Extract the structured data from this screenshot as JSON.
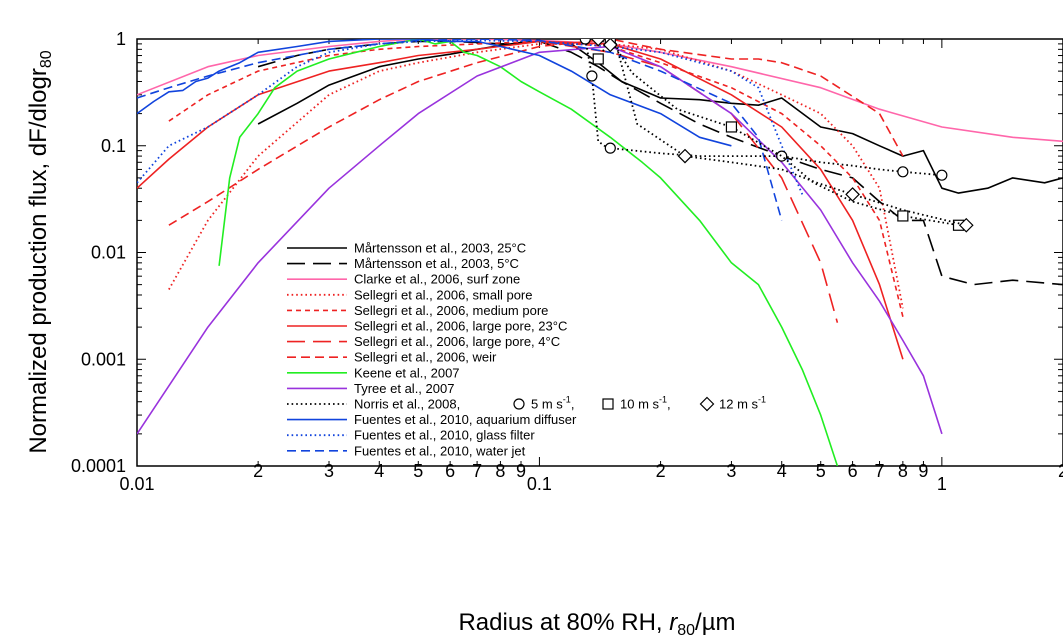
{
  "chart_data": {
    "type": "line",
    "xlabel_text": "Radius at 80% RH, ",
    "xlabel_var": "r",
    "xlabel_var_sub": "80",
    "xlabel_unit": "/µm",
    "ylabel_text": "Normalized production flux, dF/dlogr",
    "ylabel_sub": "80",
    "x_scale": "log",
    "y_scale": "log",
    "xlim": [
      0.01,
      2
    ],
    "ylim": [
      0.0001,
      1
    ],
    "x_major_ticks": [
      {
        "value": 0.01,
        "label": "0.01"
      },
      {
        "value": 0.1,
        "label": "0.1"
      },
      {
        "value": 1,
        "label": "1"
      }
    ],
    "x_minor_ticks": [
      {
        "value": 0.02,
        "label": "2"
      },
      {
        "value": 0.03,
        "label": "3"
      },
      {
        "value": 0.04,
        "label": "4"
      },
      {
        "value": 0.05,
        "label": "5"
      },
      {
        "value": 0.06,
        "label": "6"
      },
      {
        "value": 0.07,
        "label": "7"
      },
      {
        "value": 0.08,
        "label": "8"
      },
      {
        "value": 0.09,
        "label": "9"
      },
      {
        "value": 0.2,
        "label": "2"
      },
      {
        "value": 0.3,
        "label": "3"
      },
      {
        "value": 0.4,
        "label": "4"
      },
      {
        "value": 0.5,
        "label": "5"
      },
      {
        "value": 0.6,
        "label": "6"
      },
      {
        "value": 0.7,
        "label": "7"
      },
      {
        "value": 0.8,
        "label": "8"
      },
      {
        "value": 0.9,
        "label": "9"
      },
      {
        "value": 2,
        "label": "2"
      }
    ],
    "y_major_ticks": [
      {
        "value": 1,
        "label": "1"
      },
      {
        "value": 0.1,
        "label": "0.1"
      },
      {
        "value": 0.01,
        "label": "0.01"
      },
      {
        "value": 0.001,
        "label": "0.001"
      },
      {
        "value": 0.0001,
        "label": "0.0001"
      }
    ],
    "grid": false,
    "legend_position": "bottom-left inside",
    "norris_marker_legend": {
      "prefix": "Norris et al., 2008,",
      "items": [
        {
          "marker": "circle",
          "text": "5 m s",
          "sup": "-1",
          "after": ","
        },
        {
          "marker": "square",
          "text": "10 m s",
          "sup": "-1",
          "after": ","
        },
        {
          "marker": "diamond",
          "text": "12 m s",
          "sup": "-1",
          "after": ""
        }
      ]
    },
    "series": [
      {
        "name": "Mårtensson et al., 2003, 25°C",
        "color": "#000000",
        "dash": "solid",
        "x": [
          0.02,
          0.025,
          0.03,
          0.04,
          0.05,
          0.06,
          0.07,
          0.08,
          0.09,
          0.1,
          0.11,
          0.12,
          0.14,
          0.16,
          0.2,
          0.25,
          0.3,
          0.35,
          0.4,
          0.5,
          0.6,
          0.7,
          0.8,
          0.9,
          1.0,
          1.1,
          1.3,
          1.5,
          1.8,
          2.0
        ],
        "y": [
          0.16,
          0.25,
          0.37,
          0.55,
          0.65,
          0.72,
          0.8,
          0.87,
          0.93,
          0.95,
          0.95,
          0.9,
          0.6,
          0.4,
          0.28,
          0.27,
          0.25,
          0.24,
          0.28,
          0.15,
          0.13,
          0.1,
          0.08,
          0.09,
          0.04,
          0.036,
          0.04,
          0.05,
          0.045,
          0.05
        ]
      },
      {
        "name": "Mårtensson et al., 2003, 5°C",
        "color": "#000000",
        "dash": "longdash",
        "x": [
          0.02,
          0.025,
          0.03,
          0.04,
          0.05,
          0.06,
          0.07,
          0.08,
          0.09,
          0.1,
          0.12,
          0.14,
          0.16,
          0.2,
          0.25,
          0.3,
          0.4,
          0.5,
          0.6,
          0.7,
          0.8,
          0.9,
          1.0,
          1.2,
          1.5,
          2.0
        ],
        "y": [
          0.55,
          0.7,
          0.8,
          0.9,
          0.95,
          0.95,
          0.93,
          0.9,
          0.92,
          0.95,
          0.75,
          0.55,
          0.4,
          0.25,
          0.16,
          0.12,
          0.08,
          0.06,
          0.05,
          0.03,
          0.02,
          0.02,
          0.006,
          0.005,
          0.0055,
          0.005
        ]
      },
      {
        "name": "Clarke et al., 2006, surf zone",
        "color": "#ff66aa",
        "dash": "solid",
        "x": [
          0.01,
          0.015,
          0.02,
          0.03,
          0.04,
          0.05,
          0.07,
          0.1,
          0.15,
          0.2,
          0.3,
          0.5,
          0.7,
          1.0,
          1.5,
          2.0
        ],
        "y": [
          0.3,
          0.55,
          0.7,
          0.85,
          0.95,
          1.0,
          1.0,
          0.97,
          0.9,
          0.75,
          0.55,
          0.35,
          0.22,
          0.15,
          0.12,
          0.11
        ]
      },
      {
        "name": "Sellegri et al., 2006, small pore",
        "color": "#ee2222",
        "dash": "dot",
        "x": [
          0.012,
          0.015,
          0.02,
          0.03,
          0.04,
          0.05,
          0.07,
          0.1,
          0.15,
          0.2,
          0.3,
          0.4,
          0.5,
          0.6,
          0.7,
          0.8
        ],
        "y": [
          0.0045,
          0.02,
          0.08,
          0.3,
          0.5,
          0.6,
          0.75,
          0.9,
          0.9,
          0.8,
          0.5,
          0.3,
          0.2,
          0.1,
          0.04,
          0.003
        ]
      },
      {
        "name": "Sellegri et al., 2006, medium pore",
        "color": "#ee2222",
        "dash": "shortdash",
        "x": [
          0.012,
          0.015,
          0.02,
          0.03,
          0.04,
          0.05,
          0.07,
          0.1,
          0.15,
          0.2,
          0.3,
          0.4,
          0.5,
          0.6,
          0.7,
          0.8
        ],
        "y": [
          0.17,
          0.3,
          0.5,
          0.7,
          0.8,
          0.85,
          0.9,
          0.95,
          0.85,
          0.6,
          0.35,
          0.2,
          0.1,
          0.05,
          0.02,
          0.0025
        ]
      },
      {
        "name": "Sellegri et al., 2006, large pore, 23°C",
        "color": "#ee2222",
        "dash": "solid",
        "x": [
          0.01,
          0.012,
          0.015,
          0.02,
          0.03,
          0.04,
          0.05,
          0.07,
          0.1,
          0.15,
          0.2,
          0.3,
          0.4,
          0.5,
          0.6,
          0.7,
          0.8
        ],
        "y": [
          0.04,
          0.075,
          0.15,
          0.3,
          0.5,
          0.6,
          0.7,
          0.8,
          0.95,
          0.9,
          0.65,
          0.3,
          0.15,
          0.06,
          0.02,
          0.005,
          0.001
        ]
      },
      {
        "name": "Sellegri et al., 2006, large pore, 4°C",
        "color": "#ee2222",
        "dash": "longdash",
        "x": [
          0.1,
          0.15,
          0.2,
          0.3,
          0.4,
          0.5,
          0.55
        ],
        "y": [
          0.95,
          0.75,
          0.55,
          0.2,
          0.05,
          0.008,
          0.0022
        ]
      },
      {
        "name": "Sellegri et al., 2006, weir",
        "color": "#ee2222",
        "dash": "dash",
        "x": [
          0.012,
          0.015,
          0.02,
          0.03,
          0.04,
          0.05,
          0.07,
          0.1,
          0.15,
          0.2,
          0.3,
          0.35,
          0.4,
          0.5,
          0.7,
          0.8
        ],
        "y": [
          0.018,
          0.03,
          0.06,
          0.15,
          0.27,
          0.4,
          0.6,
          0.85,
          1.0,
          0.8,
          0.65,
          0.65,
          0.6,
          0.45,
          0.2,
          0.08
        ]
      },
      {
        "name": "Keene et al., 2007",
        "color": "#22ee22",
        "dash": "solid",
        "x": [
          0.016,
          0.017,
          0.018,
          0.02,
          0.022,
          0.025,
          0.03,
          0.035,
          0.04,
          0.05,
          0.055,
          0.06,
          0.065,
          0.07,
          0.08,
          0.09,
          0.1,
          0.12,
          0.15,
          0.18,
          0.2,
          0.25,
          0.3,
          0.35,
          0.4,
          0.45,
          0.5,
          0.55
        ],
        "y": [
          0.0075,
          0.05,
          0.12,
          0.2,
          0.35,
          0.5,
          0.65,
          0.75,
          0.85,
          1.0,
          0.9,
          0.95,
          0.75,
          0.7,
          0.55,
          0.4,
          0.32,
          0.22,
          0.12,
          0.07,
          0.05,
          0.02,
          0.008,
          0.005,
          0.002,
          0.0008,
          0.0003,
          0.0001
        ]
      },
      {
        "name": "Tyree et al., 2007",
        "color": "#9933dd",
        "dash": "solid",
        "x": [
          0.01,
          0.015,
          0.02,
          0.03,
          0.04,
          0.05,
          0.07,
          0.1,
          0.15,
          0.2,
          0.3,
          0.4,
          0.5,
          0.6,
          0.7,
          0.8,
          0.9,
          1.0
        ],
        "y": [
          0.0002,
          0.002,
          0.008,
          0.04,
          0.1,
          0.2,
          0.45,
          0.75,
          0.85,
          0.55,
          0.2,
          0.07,
          0.025,
          0.008,
          0.0035,
          0.0015,
          0.0007,
          0.0002
        ]
      },
      {
        "name": "Fuentes et al., 2010, aquarium diffuser",
        "color": "#1144dd",
        "dash": "solid",
        "x": [
          0.01,
          0.011,
          0.012,
          0.013,
          0.014,
          0.015,
          0.016,
          0.018,
          0.02,
          0.025,
          0.03,
          0.04,
          0.05,
          0.06,
          0.07,
          0.08,
          0.1,
          0.12,
          0.15,
          0.2,
          0.25,
          0.3
        ],
        "y": [
          0.2,
          0.26,
          0.32,
          0.33,
          0.4,
          0.43,
          0.5,
          0.6,
          0.75,
          0.85,
          0.95,
          1.0,
          1.0,
          0.95,
          0.95,
          0.85,
          0.7,
          0.5,
          0.3,
          0.2,
          0.12,
          0.1
        ]
      },
      {
        "name": "Fuentes et al., 2010, glass filter",
        "color": "#1144dd",
        "dash": "dot",
        "x": [
          0.01,
          0.012,
          0.015,
          0.02,
          0.025,
          0.03,
          0.04,
          0.05,
          0.07,
          0.1,
          0.15,
          0.2,
          0.3,
          0.35,
          0.4,
          0.45
        ],
        "y": [
          0.045,
          0.1,
          0.15,
          0.3,
          0.55,
          0.75,
          0.9,
          0.95,
          0.97,
          0.95,
          0.85,
          0.75,
          0.5,
          0.35,
          0.1,
          0.035
        ]
      },
      {
        "name": "Fuentes et al., 2010, water jet",
        "color": "#1144dd",
        "dash": "dash",
        "x": [
          0.01,
          0.012,
          0.015,
          0.02,
          0.03,
          0.04,
          0.05,
          0.07,
          0.1,
          0.15,
          0.2,
          0.3,
          0.35,
          0.4
        ],
        "y": [
          0.28,
          0.35,
          0.45,
          0.6,
          0.8,
          0.9,
          0.97,
          1.0,
          0.97,
          0.75,
          0.5,
          0.25,
          0.12,
          0.02
        ]
      },
      {
        "name": "Norris et al., 2008, 5 m s-1",
        "color": "#000000",
        "dash": "dot",
        "marker": "circle",
        "in_legend": false,
        "x": [
          0.13,
          0.135,
          0.14,
          0.145,
          0.15,
          0.2,
          0.25,
          0.3,
          0.4,
          0.5,
          0.6,
          0.7,
          0.8,
          1.0
        ],
        "y": [
          1.0,
          0.45,
          0.11,
          0.1,
          0.095,
          0.085,
          0.08,
          0.08,
          0.08,
          0.07,
          0.065,
          0.06,
          0.057,
          0.053
        ]
      },
      {
        "name": "Norris et al., 2008, 10 m s-1",
        "color": "#000000",
        "dash": "dot",
        "marker": "square",
        "in_legend": false,
        "x": [
          0.14,
          0.15,
          0.17,
          0.22,
          0.3,
          0.4,
          0.48,
          0.6,
          0.8,
          1.1
        ],
        "y": [
          0.65,
          1.0,
          0.48,
          0.22,
          0.15,
          0.08,
          0.045,
          0.03,
          0.022,
          0.018
        ]
      },
      {
        "name": "Norris et al., 2008, 12 m s-1",
        "color": "#000000",
        "dash": "dot",
        "marker": "diamond",
        "in_legend": false,
        "x": [
          0.14,
          0.15,
          0.155,
          0.175,
          0.23,
          0.3,
          0.4,
          0.49,
          0.6,
          0.8,
          1.15
        ],
        "y": [
          1.0,
          0.88,
          0.9,
          0.16,
          0.08,
          0.07,
          0.06,
          0.045,
          0.035,
          0.025,
          0.018
        ]
      }
    ]
  }
}
